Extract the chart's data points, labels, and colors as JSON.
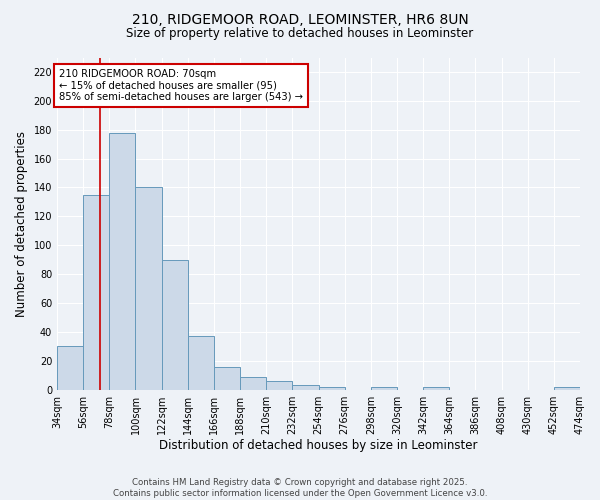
{
  "title": "210, RIDGEMOOR ROAD, LEOMINSTER, HR6 8UN",
  "subtitle": "Size of property relative to detached houses in Leominster",
  "xlabel": "Distribution of detached houses by size in Leominster",
  "ylabel": "Number of detached properties",
  "bar_edges": [
    34,
    56,
    78,
    100,
    122,
    144,
    166,
    188,
    210,
    232,
    254,
    276,
    298,
    320,
    342,
    364,
    386,
    408,
    430,
    452,
    474
  ],
  "bar_heights": [
    30,
    135,
    178,
    140,
    90,
    37,
    16,
    9,
    6,
    3,
    2,
    0,
    2,
    0,
    2,
    0,
    0,
    0,
    0,
    2
  ],
  "bar_color": "#ccd9e8",
  "bar_edge_color": "#6699bb",
  "red_line_x": 70,
  "annotation_text": "210 RIDGEMOOR ROAD: 70sqm\n← 15% of detached houses are smaller (95)\n85% of semi-detached houses are larger (543) →",
  "annotation_box_color": "white",
  "annotation_box_edge_color": "#cc0000",
  "ylim": [
    0,
    230
  ],
  "yticks": [
    0,
    20,
    40,
    60,
    80,
    100,
    120,
    140,
    160,
    180,
    200,
    220
  ],
  "tick_labels": [
    "34sqm",
    "56sqm",
    "78sqm",
    "100sqm",
    "122sqm",
    "144sqm",
    "166sqm",
    "188sqm",
    "210sqm",
    "232sqm",
    "254sqm",
    "276sqm",
    "298sqm",
    "320sqm",
    "342sqm",
    "364sqm",
    "386sqm",
    "408sqm",
    "430sqm",
    "452sqm",
    "474sqm"
  ],
  "footer_line1": "Contains HM Land Registry data © Crown copyright and database right 2025.",
  "footer_line2": "Contains public sector information licensed under the Open Government Licence v3.0.",
  "background_color": "#eef2f7",
  "grid_color": "#ffffff"
}
